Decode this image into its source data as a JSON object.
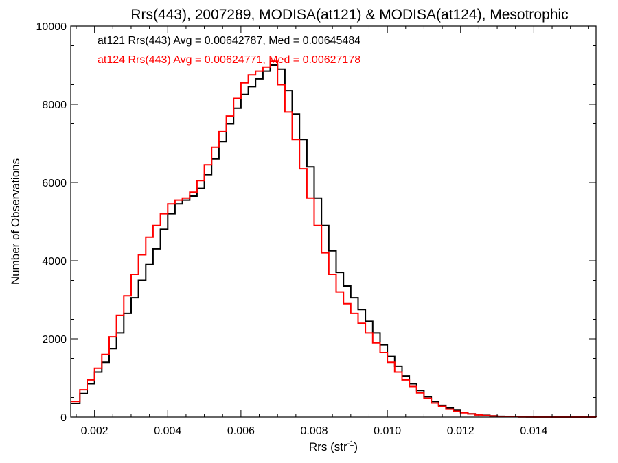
{
  "chart_data": {
    "type": "line",
    "step": true,
    "title": "Rrs(443), 2007289, MODISA(at121) & MODISA(at124), Mesotrophic",
    "xlabel": "Rrs (str",
    "xlabel_sup": "-1",
    "xlabel_end": ")",
    "ylabel": "Number of Observations",
    "xlim": [
      0.00135,
      0.0157
    ],
    "ylim": [
      0,
      10000
    ],
    "xticks": [
      0.002,
      0.004,
      0.006,
      0.008,
      0.01,
      0.012,
      0.014
    ],
    "xtick_labels": [
      "0.002",
      "0.004",
      "0.006",
      "0.008",
      "0.010",
      "0.012",
      "0.014"
    ],
    "yticks": [
      0,
      2000,
      4000,
      6000,
      8000,
      10000
    ],
    "ytick_labels": [
      "0",
      "2000",
      "4000",
      "6000",
      "8000",
      "10000"
    ],
    "grid": false,
    "annotations": [
      {
        "text": "at121 Rrs(443) Avg = 0.00642787, Med = 0.00645484",
        "color": "#000000"
      },
      {
        "text": "at124 Rrs(443) Avg = 0.00624771, Med = 0.00627178",
        "color": "#ff0000"
      }
    ],
    "series": [
      {
        "color": "#000000",
        "x": [
          0.00135,
          0.0016,
          0.0018,
          0.002,
          0.0022,
          0.0024,
          0.0026,
          0.0028,
          0.003,
          0.0032,
          0.0034,
          0.0036,
          0.0038,
          0.004,
          0.0042,
          0.0044,
          0.0046,
          0.0048,
          0.005,
          0.0052,
          0.0054,
          0.0056,
          0.0058,
          0.006,
          0.0062,
          0.0064,
          0.0066,
          0.0068,
          0.007,
          0.0072,
          0.0074,
          0.0076,
          0.0078,
          0.008,
          0.0082,
          0.0084,
          0.0086,
          0.0088,
          0.009,
          0.0092,
          0.0094,
          0.0096,
          0.0098,
          0.01,
          0.0102,
          0.0104,
          0.0106,
          0.0108,
          0.011,
          0.0112,
          0.0114,
          0.0116,
          0.0118,
          0.012,
          0.0122,
          0.0124,
          0.0126,
          0.0128,
          0.013,
          0.0132,
          0.0134,
          0.0136,
          0.0138,
          0.014,
          0.0145,
          0.015,
          0.0157
        ],
        "y": [
          350,
          600,
          850,
          1150,
          1400,
          1750,
          2150,
          2650,
          3050,
          3500,
          3900,
          4300,
          4800,
          5200,
          5450,
          5550,
          5650,
          5850,
          6200,
          6600,
          7050,
          7500,
          7900,
          8250,
          8450,
          8650,
          8850,
          9000,
          8900,
          8350,
          7750,
          7100,
          6400,
          5600,
          4900,
          4250,
          3700,
          3350,
          3050,
          2750,
          2450,
          2150,
          1850,
          1550,
          1300,
          1050,
          850,
          680,
          520,
          400,
          300,
          230,
          170,
          120,
          85,
          60,
          45,
          30,
          20,
          15,
          10,
          7,
          5,
          3,
          2,
          1,
          0
        ]
      },
      {
        "color": "#ff0000",
        "x": [
          0.00135,
          0.0016,
          0.0018,
          0.002,
          0.0022,
          0.0024,
          0.0026,
          0.0028,
          0.003,
          0.0032,
          0.0034,
          0.0036,
          0.0038,
          0.004,
          0.0042,
          0.0044,
          0.0046,
          0.0048,
          0.005,
          0.0052,
          0.0054,
          0.0056,
          0.0058,
          0.006,
          0.0062,
          0.0064,
          0.0066,
          0.0068,
          0.007,
          0.0072,
          0.0074,
          0.0076,
          0.0078,
          0.008,
          0.0082,
          0.0084,
          0.0086,
          0.0088,
          0.009,
          0.0092,
          0.0094,
          0.0096,
          0.0098,
          0.01,
          0.0102,
          0.0104,
          0.0106,
          0.0108,
          0.011,
          0.0112,
          0.0114,
          0.0116,
          0.0118,
          0.012,
          0.0122,
          0.0124,
          0.0126,
          0.0128,
          0.013,
          0.0132,
          0.0134,
          0.0136,
          0.0138,
          0.014,
          0.0145,
          0.015,
          0.0157
        ],
        "y": [
          400,
          700,
          950,
          1250,
          1600,
          2050,
          2600,
          3100,
          3650,
          4150,
          4600,
          4900,
          5200,
          5450,
          5550,
          5600,
          5750,
          6050,
          6450,
          6900,
          7300,
          7700,
          8150,
          8550,
          8750,
          8850,
          8950,
          9100,
          8500,
          7800,
          7100,
          6350,
          5600,
          4900,
          4200,
          3650,
          3200,
          2900,
          2650,
          2400,
          2150,
          1900,
          1650,
          1400,
          1150,
          950,
          780,
          620,
          480,
          360,
          270,
          200,
          150,
          110,
          80,
          55,
          40,
          28,
          18,
          12,
          8,
          5,
          4,
          2,
          1,
          1,
          0
        ]
      }
    ]
  }
}
